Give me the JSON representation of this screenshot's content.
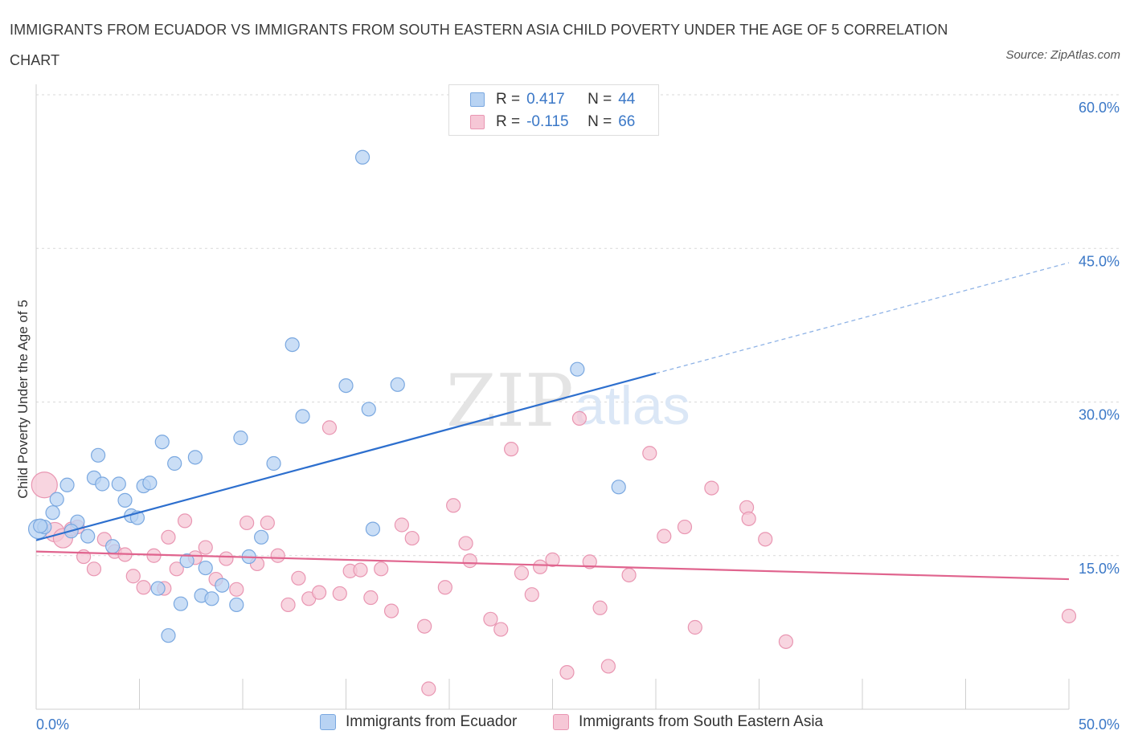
{
  "title": "IMMIGRANTS FROM ECUADOR VS IMMIGRANTS FROM SOUTH EASTERN ASIA CHILD POVERTY UNDER THE AGE OF 5 CORRELATION CHART",
  "source": "Source: ZipAtlas.com",
  "watermark": {
    "zip": "ZIP",
    "atlas": "atlas"
  },
  "legend": {
    "r_label": "R =",
    "n_label": "N =",
    "series1": {
      "r": "0.417",
      "n": "44"
    },
    "series2": {
      "r": "-0.115",
      "n": "66"
    }
  },
  "colors": {
    "blue_fill": "#b8d3f3",
    "blue_stroke": "#7aa8e0",
    "blue_line": "#2d6fce",
    "pink_fill": "#f6c7d6",
    "pink_stroke": "#e996b2",
    "pink_line": "#e0648e",
    "tick_label": "#3b78c7",
    "grid": "#d9d9d9"
  },
  "chart_data": {
    "type": "scatter",
    "title": "IMMIGRANTS FROM ECUADOR VS IMMIGRANTS FROM SOUTH EASTERN ASIA CHILD POVERTY UNDER THE AGE OF 5 CORRELATION CHART",
    "xlabel": "",
    "ylabel": "Child Poverty Under the Age of 5",
    "xlim": [
      0,
      50
    ],
    "ylim": [
      0,
      60
    ],
    "x_tick_labels": [
      "0.0%",
      "50.0%"
    ],
    "y_ticks": [
      15,
      30,
      45,
      60
    ],
    "y_tick_labels": [
      "15.0%",
      "30.0%",
      "45.0%",
      "60.0%"
    ],
    "grid": true,
    "legend_position": "top-center",
    "series": [
      {
        "name": "Immigrants from Ecuador",
        "points": [
          [
            0.1,
            17.6
          ],
          [
            0.4,
            17.8
          ],
          [
            0.8,
            19.2
          ],
          [
            1.0,
            20.5
          ],
          [
            1.5,
            21.9
          ],
          [
            2.0,
            18.3
          ],
          [
            1.7,
            17.4
          ],
          [
            2.5,
            16.9
          ],
          [
            2.8,
            22.6
          ],
          [
            3.2,
            22.0
          ],
          [
            3.0,
            24.8
          ],
          [
            3.7,
            15.9
          ],
          [
            4.0,
            22.0
          ],
          [
            4.3,
            20.4
          ],
          [
            4.6,
            18.9
          ],
          [
            4.9,
            18.7
          ],
          [
            5.2,
            21.8
          ],
          [
            5.5,
            22.1
          ],
          [
            5.9,
            11.8
          ],
          [
            6.1,
            26.1
          ],
          [
            6.4,
            7.2
          ],
          [
            6.7,
            24.0
          ],
          [
            7.0,
            10.3
          ],
          [
            7.3,
            14.5
          ],
          [
            7.7,
            24.6
          ],
          [
            8.0,
            11.1
          ],
          [
            8.2,
            13.8
          ],
          [
            8.5,
            10.8
          ],
          [
            9.0,
            12.1
          ],
          [
            9.7,
            10.2
          ],
          [
            9.9,
            26.5
          ],
          [
            10.3,
            14.9
          ],
          [
            10.9,
            16.8
          ],
          [
            11.5,
            24.0
          ],
          [
            12.4,
            35.6
          ],
          [
            12.9,
            28.6
          ],
          [
            15.0,
            31.6
          ],
          [
            15.8,
            53.9
          ],
          [
            16.1,
            29.3
          ],
          [
            16.3,
            17.6
          ],
          [
            17.5,
            31.7
          ],
          [
            26.2,
            33.2
          ],
          [
            28.2,
            21.7
          ],
          [
            0.2,
            17.9
          ]
        ],
        "trend": {
          "x": [
            0,
            30.0
          ],
          "y": [
            16.5,
            32.8
          ],
          "dashed_extension_to_x": 50,
          "dashed_extension_y": 43.6
        }
      },
      {
        "name": "Immigrants from South Eastern Asia",
        "points": [
          [
            0.4,
            21.9
          ],
          [
            0.9,
            17.3
          ],
          [
            1.3,
            16.7
          ],
          [
            1.7,
            17.6
          ],
          [
            2.0,
            17.8
          ],
          [
            2.3,
            14.9
          ],
          [
            2.8,
            13.7
          ],
          [
            3.3,
            16.6
          ],
          [
            3.8,
            15.4
          ],
          [
            4.3,
            15.1
          ],
          [
            4.7,
            13.0
          ],
          [
            5.2,
            11.9
          ],
          [
            5.7,
            15.0
          ],
          [
            6.2,
            11.8
          ],
          [
            6.4,
            16.8
          ],
          [
            6.8,
            13.7
          ],
          [
            7.2,
            18.4
          ],
          [
            7.7,
            14.8
          ],
          [
            8.2,
            15.8
          ],
          [
            8.7,
            12.7
          ],
          [
            9.2,
            14.7
          ],
          [
            9.7,
            11.7
          ],
          [
            10.2,
            18.2
          ],
          [
            10.7,
            14.2
          ],
          [
            11.2,
            18.2
          ],
          [
            11.7,
            15.0
          ],
          [
            12.2,
            10.2
          ],
          [
            12.7,
            12.8
          ],
          [
            13.2,
            10.8
          ],
          [
            13.7,
            11.4
          ],
          [
            14.2,
            27.5
          ],
          [
            14.7,
            11.3
          ],
          [
            15.2,
            13.5
          ],
          [
            15.7,
            13.6
          ],
          [
            16.2,
            10.9
          ],
          [
            16.7,
            13.7
          ],
          [
            17.2,
            9.6
          ],
          [
            17.7,
            18.0
          ],
          [
            18.2,
            16.7
          ],
          [
            18.8,
            8.1
          ],
          [
            19.0,
            2.0
          ],
          [
            19.8,
            11.9
          ],
          [
            20.2,
            19.9
          ],
          [
            20.8,
            16.2
          ],
          [
            21.0,
            14.5
          ],
          [
            22.0,
            8.8
          ],
          [
            22.5,
            7.8
          ],
          [
            23.0,
            25.4
          ],
          [
            23.5,
            13.3
          ],
          [
            24.0,
            11.2
          ],
          [
            24.4,
            13.9
          ],
          [
            25.0,
            14.6
          ],
          [
            25.7,
            3.6
          ],
          [
            26.3,
            28.4
          ],
          [
            26.8,
            14.4
          ],
          [
            27.3,
            9.9
          ],
          [
            27.7,
            4.2
          ],
          [
            28.7,
            13.1
          ],
          [
            29.7,
            25.0
          ],
          [
            30.4,
            16.9
          ],
          [
            31.4,
            17.8
          ],
          [
            31.9,
            8.0
          ],
          [
            32.7,
            21.6
          ],
          [
            34.4,
            19.7
          ],
          [
            34.5,
            18.6
          ],
          [
            35.3,
            16.6
          ],
          [
            36.3,
            6.6
          ],
          [
            50.0,
            9.1
          ]
        ],
        "trend": {
          "x": [
            0,
            50
          ],
          "y": [
            15.4,
            12.7
          ]
        }
      }
    ]
  },
  "bottom_legend": {
    "series1_label": "Immigrants from Ecuador",
    "series2_label": "Immigrants from South Eastern Asia"
  }
}
